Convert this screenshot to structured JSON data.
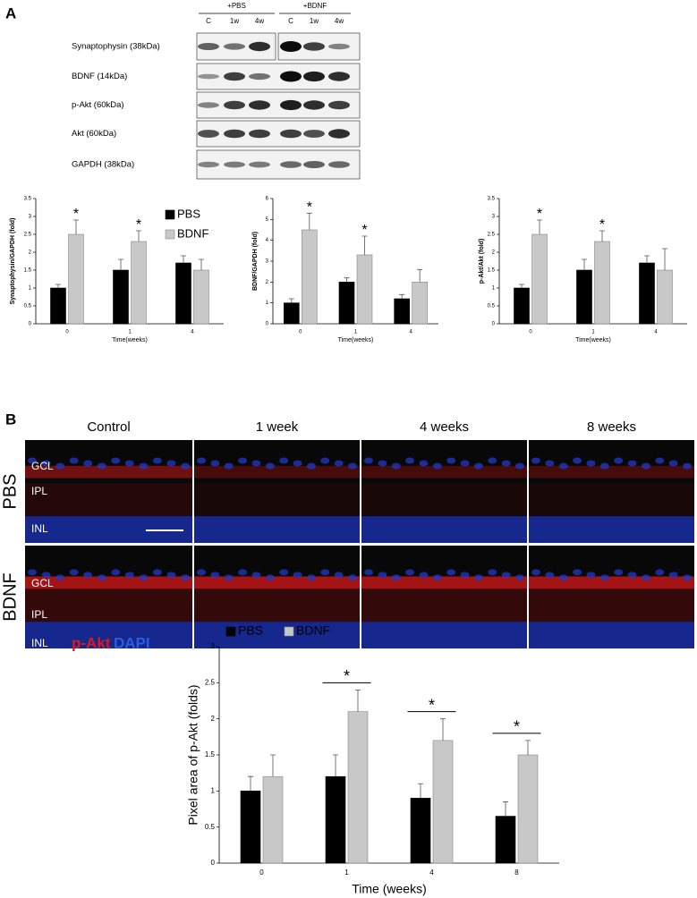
{
  "panels": [
    "A",
    "B"
  ],
  "blot": {
    "groups": [
      "+PBS",
      "+BDNF"
    ],
    "lanes": [
      "C",
      "1w",
      "4w",
      "C",
      "1w",
      "4w"
    ],
    "rows": [
      "Synaptophysin (38kDa)",
      "BDNF (14kDa)",
      "p-Akt (60kDa)",
      "Akt (60kDa)",
      "GAPDH (38kDa)"
    ]
  },
  "micrograph": {
    "columns": [
      "Control",
      "1 week",
      "4 weeks",
      "8 weeks"
    ],
    "rows": [
      "PBS",
      "BDNF"
    ],
    "layers": [
      "GCL",
      "IPL",
      "INL"
    ],
    "stains": [
      "p-Akt",
      "DAPI"
    ]
  },
  "chart_data": [
    {
      "type": "bar",
      "y_label": "Synaptophysin/GAPDH (fold)",
      "x_label": "Time(weeks)",
      "categories": [
        "0",
        "1",
        "4"
      ],
      "series": [
        {
          "name": "PBS",
          "color": "#000000",
          "values": [
            1,
            1.5,
            1.7
          ],
          "errors": [
            0.1,
            0.3,
            0.2
          ]
        },
        {
          "name": "BDNF",
          "color": "#c8c8c8",
          "values": [
            2.5,
            2.3,
            1.5
          ],
          "errors": [
            0.4,
            0.3,
            0.3
          ]
        }
      ],
      "annotations": [
        "*",
        "*",
        null
      ],
      "ylim": [
        0,
        3.5
      ],
      "yticks": [
        0,
        0.5,
        1,
        1.5,
        2,
        2.5,
        3,
        3.5
      ],
      "legend": "upper right"
    },
    {
      "type": "bar",
      "y_label": "BDNF/GAPDH (fold)",
      "x_label": "Time(weeks)",
      "categories": [
        "0",
        "1",
        "4"
      ],
      "series": [
        {
          "color": "#000000",
          "values": [
            1,
            2,
            1.2
          ],
          "errors": [
            0.2,
            0.2,
            0.2
          ]
        },
        {
          "color": "#c8c8c8",
          "values": [
            4.5,
            3.3,
            2
          ],
          "errors": [
            0.8,
            0.9,
            0.6
          ]
        }
      ],
      "annotations": [
        "*",
        "*",
        null
      ],
      "ylim": [
        0,
        6
      ],
      "yticks": [
        0,
        1,
        2,
        3,
        4,
        5,
        6
      ]
    },
    {
      "type": "bar",
      "y_label": "p-Akt/Akt (fold)",
      "x_label": "Time(weeks)",
      "categories": [
        "0",
        "1",
        "4"
      ],
      "series": [
        {
          "color": "#000000",
          "values": [
            1,
            1.5,
            1.7
          ],
          "errors": [
            0.1,
            0.3,
            0.2
          ]
        },
        {
          "color": "#c8c8c8",
          "values": [
            2.5,
            2.3,
            1.5
          ],
          "errors": [
            0.4,
            0.3,
            0.6
          ]
        }
      ],
      "annotations": [
        "*",
        "*",
        null
      ],
      "ylim": [
        0,
        3.5
      ],
      "yticks": [
        0,
        0.5,
        1,
        1.5,
        2,
        2.5,
        3,
        3.5
      ]
    },
    {
      "type": "bar",
      "y_label": "Pixel area of p-Akt (folds)",
      "x_label": "Time (weeks)",
      "categories": [
        "0",
        "1",
        "4",
        "8"
      ],
      "series": [
        {
          "name": "PBS",
          "color": "#000000",
          "values": [
            1,
            1.2,
            0.9,
            0.65
          ],
          "errors": [
            0.2,
            0.3,
            0.2,
            0.2
          ]
        },
        {
          "name": "BDNF",
          "color": "#c8c8c8",
          "values": [
            1.2,
            2.1,
            1.7,
            1.5
          ],
          "errors": [
            0.3,
            0.3,
            0.3,
            0.2
          ]
        }
      ],
      "annotations": [
        null,
        "*",
        "*",
        "*"
      ],
      "ylim": [
        0,
        3
      ],
      "yticks": [
        0,
        0.5,
        1,
        1.5,
        2,
        2.5,
        3
      ],
      "legend": "upper left"
    }
  ]
}
